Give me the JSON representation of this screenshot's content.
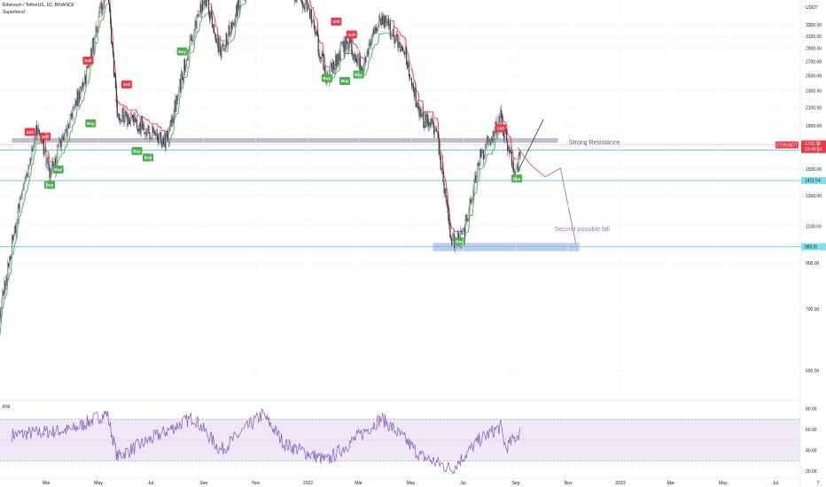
{
  "header": {
    "symbol_line": "Ethereum / TetherUS, 1D, BINANCE",
    "indicator": "Supertrend"
  },
  "colors": {
    "up": "#26a69a",
    "down": "#ef5350",
    "st_green": "#4caf50",
    "st_red": "#f23645",
    "level_line": "#4dd0e1",
    "resistance_band": "#b2b5be",
    "support_band": "#b8bff0",
    "rsi_line": "#7e57c2",
    "rsi_band": "#ede7f6",
    "projection": "#9575cd"
  },
  "chart_data": [
    {
      "type": "line",
      "title": "Ethereum / TetherUS, 1D, BINANCE",
      "y_axis_label": "USDT",
      "ylim": [
        430,
        3780
      ],
      "x_ticks": [
        "Mar",
        "May",
        "Jul",
        "Sep",
        "Nov",
        "2022",
        "Mar",
        "May",
        "Jul",
        "Sep",
        "Nov",
        "2023",
        "Mar",
        "May",
        "Jul",
        "7"
      ],
      "y_ticks": [
        3300,
        3100,
        2900,
        2700,
        2500,
        2300,
        2100,
        1900,
        1700,
        1500,
        1300,
        1100,
        900,
        700,
        500
      ],
      "series": [
        {
          "x": [
            "2021-01-06",
            "2021-02-01",
            "2021-02-20",
            "2021-03-05",
            "2021-03-20",
            "2021-04-15",
            "2021-05-11",
            "2021-05-23",
            "2021-06-21",
            "2021-07-20",
            "2021-08-20",
            "2021-09-03",
            "2021-09-21",
            "2021-10-15",
            "2021-11-09",
            "2021-12-05",
            "2021-12-31",
            "2022-01-23",
            "2022-02-15",
            "2022-03-05",
            "2022-03-28",
            "2022-04-25",
            "2022-05-12",
            "2022-05-31",
            "2022-06-18",
            "2022-07-01",
            "2022-07-20",
            "2022-08-14",
            "2022-08-31",
            "2022-09-06"
          ],
          "values": [
            700,
            1340,
            1930,
            1450,
            1780,
            2450,
            4100,
            2050,
            1900,
            1750,
            3250,
            3900,
            2800,
            3850,
            4800,
            4100,
            3700,
            2450,
            3050,
            2600,
            3480,
            2800,
            2000,
            1850,
            1000,
            1050,
            1580,
            1990,
            1480,
            1620
          ]
        }
      ],
      "horizontal_levels": [
        {
          "value": 1665.97,
          "label": "1665.97"
        },
        {
          "value": 1411.54,
          "label": "1411.54"
        },
        {
          "value": 983.91,
          "label": "983.91"
        }
      ],
      "current_price": {
        "symbol": "ETHUSDT",
        "price": "1715.38",
        "countdown": "15:45:13"
      },
      "signals": [
        {
          "label": "Sell",
          "date": "2021-02-10",
          "price": 1775
        },
        {
          "label": "Sell",
          "date": "2021-02-28",
          "price": 1730
        },
        {
          "label": "Buy",
          "date": "2021-03-05",
          "price": 1430
        },
        {
          "label": "Buy",
          "date": "2021-03-15",
          "price": 1555
        },
        {
          "label": "Sell",
          "date": "2021-04-19",
          "price": 2620
        },
        {
          "label": "Buy",
          "date": "2021-04-22",
          "price": 2000
        },
        {
          "label": "Sell",
          "date": "2021-06-03",
          "price": 2300
        },
        {
          "label": "Buy",
          "date": "2021-06-15",
          "price": 1720
        },
        {
          "label": "Buy",
          "date": "2021-06-28",
          "price": 1660
        },
        {
          "label": "Buy",
          "date": "2021-08-07",
          "price": 2960
        },
        {
          "label": "Buy",
          "date": "2022-01-23",
          "price": 2560
        },
        {
          "label": "Sell",
          "date": "2022-02-03",
          "price": 3240
        },
        {
          "label": "Buy",
          "date": "2022-02-13",
          "price": 2520
        },
        {
          "label": "Sell",
          "date": "2022-02-21",
          "price": 3020
        },
        {
          "label": "Buy",
          "date": "2022-03-01",
          "price": 2610
        },
        {
          "label": "Buy",
          "date": "2022-06-27",
          "price": 1050
        },
        {
          "label": "Sell",
          "date": "2022-08-14",
          "price": 1810
        },
        {
          "label": "Buy",
          "date": "2022-09-02",
          "price": 1480
        }
      ],
      "annotations": [
        {
          "text": "Strong Resistance",
          "date": "2022-11-02",
          "price": 1745
        },
        {
          "text": "Second possible fall",
          "date": "2022-10-16",
          "price": 1060
        }
      ],
      "zones": [
        {
          "kind": "resistance",
          "date_from": "2021-01-20",
          "date_to": "2022-10-20",
          "price_low": 1735,
          "price_high": 1780
        },
        {
          "kind": "support",
          "date_from": "2022-05-27",
          "date_to": "2022-11-14",
          "price_low": 960,
          "price_high": 1005
        }
      ]
    },
    {
      "type": "line",
      "title": "RSI",
      "ylim": [
        15,
        85
      ],
      "y_ticks": [
        80,
        60,
        40,
        20
      ],
      "band": [
        30,
        70
      ],
      "midline": 50,
      "series": [
        {
          "x": [
            "2021-01-20",
            "2021-04-01",
            "2021-05-11",
            "2021-05-23",
            "2021-08-20",
            "2021-09-21",
            "2021-11-09",
            "2021-12-05",
            "2022-01-23",
            "2022-03-28",
            "2022-04-25",
            "2022-05-12",
            "2022-06-18",
            "2022-07-20",
            "2022-08-14",
            "2022-08-20",
            "2022-09-06"
          ],
          "values": [
            55,
            60,
            76,
            34,
            72,
            40,
            75,
            46,
            30,
            71,
            50,
            35,
            22,
            50,
            63,
            42,
            58
          ]
        }
      ]
    }
  ]
}
